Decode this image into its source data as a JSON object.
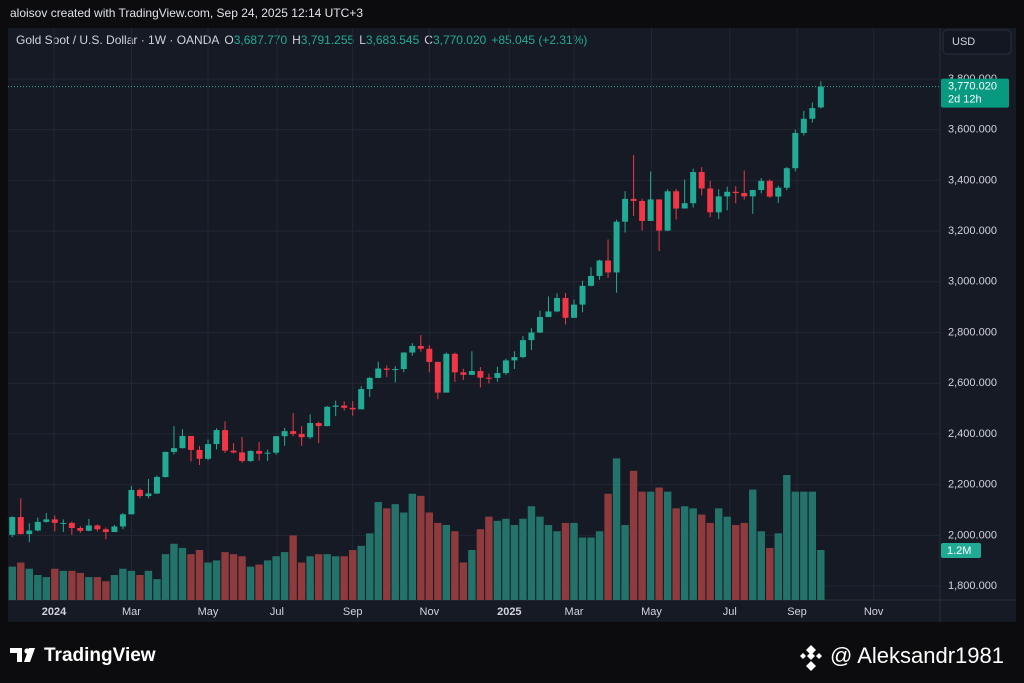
{
  "chart_data": {
    "type": "candlestick",
    "credit": "aloisov created with TradingView.com, Sep 24, 2025 12:14 UTC+3",
    "title": "Gold Spot / U.S. Dollar · 1W · OANDA",
    "legend": {
      "o": "O",
      "open": "3,687.770",
      "h": "H",
      "high": "3,791.255",
      "l": "L",
      "low": "3,683.545",
      "c": "C",
      "close": "3,770.020",
      "change": "+85.045 (+2.31%)"
    },
    "currency": "USD",
    "last_price_label": "3,770.020",
    "countdown": "2d 12h",
    "last_volume_label": "1.2M",
    "watermark": "TradingView",
    "signature": "@ Aleksandr1981",
    "up_color": "#22ab94",
    "down_color": "#f23645",
    "volume_up_color": "#24736b",
    "volume_down_color": "#8f3a3d",
    "grid": true,
    "open": [
      2002,
      2072,
      2005,
      2019,
      2053,
      2063,
      2049,
      2049,
      2029,
      2018,
      2039,
      2024,
      2013,
      2035,
      2083,
      2179,
      2155,
      2165,
      2230,
      2329,
      2344,
      2392,
      2337,
      2302,
      2360,
      2415,
      2334,
      2327,
      2293,
      2333,
      2322,
      2326,
      2391,
      2411,
      2400,
      2387,
      2443,
      2431,
      2507,
      2512,
      2503,
      2497,
      2577,
      2621,
      2658,
      2653,
      2656,
      2721,
      2747,
      2736,
      2684,
      2563,
      2716,
      2643,
      2633,
      2648,
      2622,
      2621,
      2640,
      2690,
      2703,
      2770,
      2800,
      2861,
      2883,
      2936,
      2858,
      2910,
      2984,
      3023,
      3084,
      3037,
      3237,
      3327,
      3319,
      3240,
      3325,
      3202,
      3357,
      3289,
      3310,
      3433,
      3368,
      3274,
      3337,
      3355,
      3350,
      3337,
      3362,
      3398,
      3336,
      3371,
      3448,
      3587,
      3643,
      3687.77
    ],
    "high": [
      2075,
      2146,
      2048,
      2070,
      2088,
      2078,
      2063,
      2055,
      2036,
      2065,
      2043,
      2031,
      2041,
      2088,
      2195,
      2185,
      2222,
      2236,
      2330,
      2431,
      2418,
      2392,
      2353,
      2378,
      2422,
      2450,
      2364,
      2388,
      2335,
      2368,
      2338,
      2392,
      2424,
      2483,
      2431,
      2477,
      2448,
      2510,
      2531,
      2528,
      2529,
      2589,
      2625,
      2685,
      2670,
      2667,
      2722,
      2758,
      2790,
      2750,
      2685,
      2721,
      2721,
      2657,
      2726,
      2664,
      2638,
      2665,
      2697,
      2726,
      2786,
      2817,
      2886,
      2942,
      2955,
      2956,
      2930,
      3004,
      3057,
      3087,
      3167,
      3245,
      3357,
      3500,
      3328,
      3435,
      3325,
      3365,
      3366,
      3403,
      3446,
      3452,
      3398,
      3365,
      3375,
      3377,
      3439,
      3363,
      3409,
      3404,
      3379,
      3453,
      3600,
      3674,
      3707,
      3791.255
    ],
    "low": [
      1993,
      2004,
      1973,
      2016,
      2050,
      2016,
      2013,
      2002,
      2010,
      2016,
      2015,
      1984,
      2013,
      2024,
      2083,
      2146,
      2146,
      2163,
      2228,
      2319,
      2342,
      2291,
      2277,
      2296,
      2339,
      2325,
      2323,
      2286,
      2290,
      2295,
      2293,
      2318,
      2353,
      2391,
      2353,
      2381,
      2364,
      2430,
      2470,
      2492,
      2472,
      2497,
      2546,
      2621,
      2624,
      2603,
      2643,
      2708,
      2724,
      2643,
      2537,
      2563,
      2605,
      2613,
      2632,
      2583,
      2599,
      2606,
      2633,
      2656,
      2699,
      2731,
      2798,
      2861,
      2880,
      2832,
      2858,
      2880,
      2982,
      3008,
      3015,
      2957,
      3194,
      3260,
      3202,
      3240,
      3121,
      3200,
      3245,
      3289,
      3293,
      3340,
      3255,
      3248,
      3282,
      3310,
      3324,
      3268,
      3349,
      3331,
      3311,
      3361,
      3436,
      3577,
      3628,
      3683.545
    ],
    "close": [
      2072,
      2005,
      2019,
      2053,
      2063,
      2049,
      2049,
      2029,
      2018,
      2039,
      2024,
      2013,
      2035,
      2083,
      2179,
      2155,
      2165,
      2230,
      2329,
      2344,
      2392,
      2337,
      2302,
      2360,
      2415,
      2334,
      2327,
      2293,
      2333,
      2322,
      2326,
      2391,
      2411,
      2400,
      2387,
      2443,
      2431,
      2507,
      2512,
      2503,
      2497,
      2577,
      2621,
      2658,
      2653,
      2656,
      2721,
      2747,
      2736,
      2684,
      2563,
      2716,
      2643,
      2633,
      2648,
      2622,
      2621,
      2640,
      2690,
      2703,
      2770,
      2800,
      2861,
      2883,
      2936,
      2858,
      2910,
      2984,
      3023,
      3084,
      3037,
      3237,
      3327,
      3319,
      3240,
      3325,
      3202,
      3357,
      3289,
      3310,
      3433,
      3368,
      3274,
      3337,
      3355,
      3350,
      3337,
      3362,
      3398,
      3336,
      3371,
      3448,
      3587,
      3643,
      3685,
      3770.02
    ],
    "volume": [
      800000,
      900000,
      750000,
      600000,
      550000,
      750000,
      700000,
      700000,
      650000,
      550000,
      550000,
      450000,
      600000,
      750000,
      700000,
      600000,
      700000,
      500000,
      1100000,
      1350000,
      1250000,
      1100000,
      1200000,
      900000,
      950000,
      1150000,
      1100000,
      1050000,
      800000,
      850000,
      950000,
      1050000,
      1150000,
      1550000,
      900000,
      1050000,
      1100000,
      1100000,
      1050000,
      1050000,
      1200000,
      1300000,
      1600000,
      2350000,
      2200000,
      2300000,
      2100000,
      2550000,
      2500000,
      2100000,
      1850000,
      1800000,
      1650000,
      900000,
      1200000,
      1700000,
      2000000,
      1900000,
      1950000,
      1800000,
      1950000,
      2250000,
      2000000,
      1800000,
      1650000,
      1850000,
      1850000,
      1500000,
      1500000,
      1650000,
      2550000,
      3400000,
      1800000,
      3100000,
      2600000,
      2600000,
      2700000,
      2600000,
      2200000,
      2250000,
      2200000,
      2050000,
      1850000,
      2200000,
      2000000,
      1800000,
      1850000,
      2650000,
      1650000,
      1250000,
      1600000,
      3000000,
      2600000,
      2600000,
      2600000,
      1200000
    ],
    "xlim": [
      -0.5,
      109
    ],
    "xticks": [
      {
        "value": 4.9,
        "label": "2024"
      },
      {
        "value": 14,
        "label": "Mar"
      },
      {
        "value": 23,
        "label": "May"
      },
      {
        "value": 31.1,
        "label": "Jul"
      },
      {
        "value": 40,
        "label": "Sep"
      },
      {
        "value": 49,
        "label": "Nov"
      },
      {
        "value": 58.4,
        "label": "2025"
      },
      {
        "value": 66,
        "label": "Mar"
      },
      {
        "value": 75.1,
        "label": "May"
      },
      {
        "value": 84.3,
        "label": "Jul"
      },
      {
        "value": 92.2,
        "label": "Sep"
      },
      {
        "value": 101.2,
        "label": "Nov"
      }
    ],
    "ylim": [
      1745,
      4001
    ],
    "yticks": [
      {
        "value": 1800,
        "label": "1,800.000"
      },
      {
        "value": 2000,
        "label": "2,000.000"
      },
      {
        "value": 2200,
        "label": "2,200.000"
      },
      {
        "value": 2400,
        "label": "2,400.000"
      },
      {
        "value": 2600,
        "label": "2,600.000"
      },
      {
        "value": 2800,
        "label": "2,800.000"
      },
      {
        "value": 3000,
        "label": "3,000.000"
      },
      {
        "value": 3200,
        "label": "3,200.000"
      },
      {
        "value": 3400,
        "label": "3,400.000"
      },
      {
        "value": 3600,
        "label": "3,600.000"
      },
      {
        "value": 3800,
        "label": "3,800.000"
      }
    ],
    "vlim": [
      0,
      3600000
    ]
  }
}
